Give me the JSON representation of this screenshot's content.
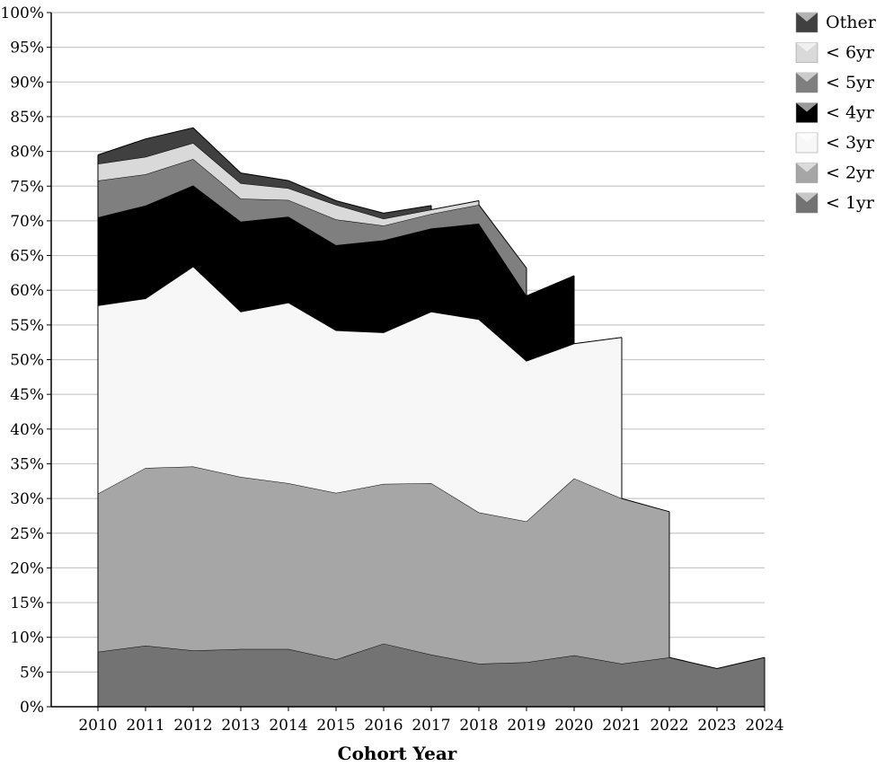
{
  "chart_data": {
    "type": "area",
    "stacked": true,
    "title": "",
    "xlabel": "Cohort Year",
    "ylabel": "",
    "ylim": [
      0,
      100
    ],
    "y_ticks": [
      "0%",
      "5%",
      "10%",
      "15%",
      "20%",
      "25%",
      "30%",
      "35%",
      "40%",
      "45%",
      "50%",
      "55%",
      "60%",
      "65%",
      "70%",
      "75%",
      "80%",
      "85%",
      "90%",
      "95%",
      "100%"
    ],
    "x": [
      "2010",
      "2011",
      "2012",
      "2013",
      "2014",
      "2015",
      "2016",
      "2017",
      "2018",
      "2019",
      "2020",
      "2021",
      "2022",
      "2023",
      "2024"
    ],
    "grid": true,
    "legend_position": "top-right",
    "series": [
      {
        "name": "< 1yr",
        "color": "#737373",
        "values": [
          7.9,
          8.8,
          8.1,
          8.3,
          8.3,
          6.8,
          9.1,
          7.5,
          6.2,
          6.4,
          7.4,
          6.2,
          7.1,
          5.5,
          7.1
        ]
      },
      {
        "name": "< 2yr",
        "color": "#a6a6a6",
        "values": [
          22.8,
          25.6,
          26.5,
          24.8,
          23.9,
          24.0,
          23.0,
          24.7,
          21.8,
          20.3,
          25.5,
          23.8,
          21.0,
          null,
          null
        ]
      },
      {
        "name": "< 3yr",
        "color": "#f7f7f7",
        "values": [
          27.1,
          24.4,
          28.8,
          23.8,
          26.0,
          23.4,
          21.8,
          24.7,
          27.8,
          23.1,
          19.4,
          23.2,
          null,
          null,
          null
        ]
      },
      {
        "name": "< 4yr",
        "color": "#000000",
        "values": [
          12.7,
          13.4,
          11.7,
          13.0,
          12.4,
          12.3,
          13.3,
          12.0,
          13.8,
          9.4,
          9.8,
          null,
          null,
          null,
          null
        ]
      },
      {
        "name": "< 5yr",
        "color": "#7f7f7f",
        "values": [
          5.3,
          4.5,
          3.8,
          3.3,
          2.4,
          3.7,
          2.1,
          2.1,
          2.7,
          4.0,
          null,
          null,
          null,
          null,
          null
        ]
      },
      {
        "name": "< 6yr",
        "color": "#d9d9d9",
        "values": [
          2.4,
          2.5,
          2.3,
          2.2,
          1.7,
          2.1,
          1.0,
          0.6,
          0.6,
          null,
          null,
          null,
          null,
          null,
          null
        ]
      },
      {
        "name": "Other",
        "color": "#404040",
        "values": [
          1.3,
          2.6,
          2.2,
          1.5,
          1.1,
          0.6,
          0.8,
          0.6,
          null,
          null,
          null,
          null,
          null,
          null,
          null
        ]
      }
    ]
  }
}
